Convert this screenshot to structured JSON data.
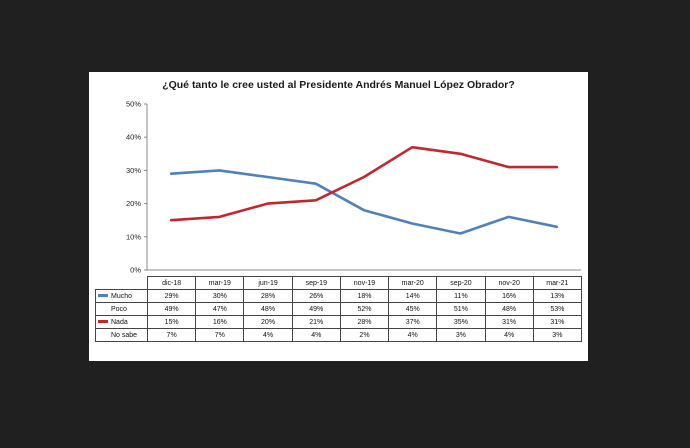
{
  "chart_data": {
    "type": "line",
    "title": "¿Qué tanto le cree usted al Presidente Andrés Manuel López Obrador?",
    "categories": [
      "dic-18",
      "mar-19",
      "jun-19",
      "sep-19",
      "nov-19",
      "mar-20",
      "sep-20",
      "nov-20",
      "mar-21"
    ],
    "ylim": [
      0,
      50
    ],
    "yticks": [
      "0%",
      "10%",
      "20%",
      "30%",
      "40%",
      "50%"
    ],
    "grid": false,
    "legend": "data-table",
    "series": [
      {
        "name": "Mucho",
        "color": "#4f81bd",
        "plotted": true,
        "values": [
          29,
          30,
          28,
          26,
          18,
          14,
          11,
          16,
          13
        ],
        "labels": [
          "29%",
          "30%",
          "28%",
          "26%",
          "18%",
          "14%",
          "11%",
          "16%",
          "13%"
        ]
      },
      {
        "name": "Poco",
        "color": "",
        "plotted": false,
        "values": [
          49,
          47,
          48,
          49,
          52,
          45,
          51,
          48,
          53
        ],
        "labels": [
          "49%",
          "47%",
          "48%",
          "49%",
          "52%",
          "45%",
          "51%",
          "48%",
          "53%"
        ]
      },
      {
        "name": "Nada",
        "color": "#c0282d",
        "plotted": true,
        "values": [
          15,
          16,
          20,
          21,
          28,
          37,
          35,
          31,
          31
        ],
        "labels": [
          "15%",
          "16%",
          "20%",
          "21%",
          "28%",
          "37%",
          "35%",
          "31%",
          "31%"
        ]
      },
      {
        "name": "No sabe",
        "color": "",
        "plotted": false,
        "values": [
          7,
          7,
          4,
          4,
          2,
          4,
          3,
          4,
          3
        ],
        "labels": [
          "7%",
          "7%",
          "4%",
          "4%",
          "2%",
          "4%",
          "3%",
          "4%",
          "3%"
        ]
      }
    ]
  }
}
